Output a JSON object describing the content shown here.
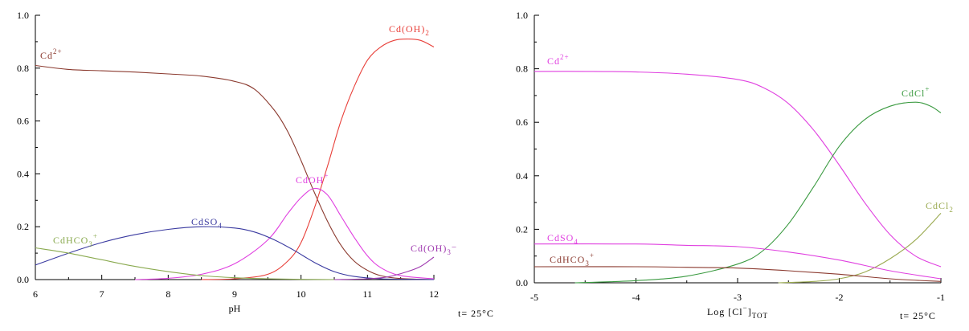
{
  "chart_data": [
    {
      "type": "line",
      "xlabel": "pH",
      "temperature_label": "t= 25°C",
      "xlim": [
        6,
        12
      ],
      "ylim": [
        0,
        1
      ],
      "x_ticks": [
        "6",
        "7",
        "8",
        "9",
        "10",
        "11",
        "12"
      ],
      "y_ticks": [
        "0.0",
        "0.2",
        "0.4",
        "0.6",
        "0.8",
        "1.0"
      ],
      "grid": false,
      "series": [
        {
          "name": "Cd2+",
          "label_main": "Cd",
          "label_sup": "2+",
          "label_sub": "",
          "label_post": "",
          "color": "#8b3a2f",
          "points": [
            [
              6,
              0.81
            ],
            [
              6.5,
              0.795
            ],
            [
              7,
              0.79
            ],
            [
              7.5,
              0.785
            ],
            [
              8,
              0.778
            ],
            [
              8.5,
              0.77
            ],
            [
              9,
              0.75
            ],
            [
              9.3,
              0.72
            ],
            [
              9.6,
              0.64
            ],
            [
              9.8,
              0.56
            ],
            [
              10,
              0.45
            ],
            [
              10.2,
              0.33
            ],
            [
              10.4,
              0.22
            ],
            [
              10.6,
              0.13
            ],
            [
              10.8,
              0.07
            ],
            [
              11,
              0.035
            ],
            [
              11.2,
              0.015
            ],
            [
              11.5,
              0.004
            ],
            [
              12,
              0.0
            ]
          ]
        },
        {
          "name": "Cd(OH)2",
          "label_main": "Cd(OH)",
          "label_sup": "",
          "label_sub": "2",
          "label_post": "",
          "color": "#e8403a",
          "points": [
            [
              8.5,
              0.0
            ],
            [
              9,
              0.003
            ],
            [
              9.5,
              0.02
            ],
            [
              9.8,
              0.07
            ],
            [
              10,
              0.14
            ],
            [
              10.2,
              0.27
            ],
            [
              10.4,
              0.43
            ],
            [
              10.6,
              0.6
            ],
            [
              10.8,
              0.73
            ],
            [
              11,
              0.83
            ],
            [
              11.2,
              0.88
            ],
            [
              11.4,
              0.905
            ],
            [
              11.6,
              0.91
            ],
            [
              11.8,
              0.905
            ],
            [
              12,
              0.88
            ]
          ]
        },
        {
          "name": "CdOH+",
          "label_main": "CdOH",
          "label_sup": "+",
          "label_sub": "",
          "label_post": "",
          "color": "#e040e0",
          "points": [
            [
              7.5,
              0.0
            ],
            [
              8,
              0.005
            ],
            [
              8.5,
              0.02
            ],
            [
              9,
              0.06
            ],
            [
              9.5,
              0.15
            ],
            [
              9.8,
              0.25
            ],
            [
              10,
              0.31
            ],
            [
              10.2,
              0.345
            ],
            [
              10.4,
              0.32
            ],
            [
              10.6,
              0.24
            ],
            [
              10.8,
              0.16
            ],
            [
              11,
              0.09
            ],
            [
              11.2,
              0.045
            ],
            [
              11.5,
              0.015
            ],
            [
              12,
              0.003
            ]
          ]
        },
        {
          "name": "CdSO4",
          "label_main": "CdSO",
          "label_sup": "",
          "label_sub": "4",
          "label_post": "",
          "color": "#3a3aa0",
          "points": [
            [
              6,
              0.055
            ],
            [
              6.5,
              0.1
            ],
            [
              7,
              0.14
            ],
            [
              7.5,
              0.17
            ],
            [
              8,
              0.19
            ],
            [
              8.5,
              0.2
            ],
            [
              9,
              0.195
            ],
            [
              9.3,
              0.18
            ],
            [
              9.6,
              0.15
            ],
            [
              9.9,
              0.11
            ],
            [
              10.2,
              0.065
            ],
            [
              10.5,
              0.03
            ],
            [
              10.8,
              0.012
            ],
            [
              11.2,
              0.003
            ],
            [
              12,
              0.0
            ]
          ]
        },
        {
          "name": "CdHCO3+",
          "label_main": "CdHCO",
          "label_sup": "+",
          "label_sub": "3",
          "label_post": "",
          "color": "#8aaa50",
          "points": [
            [
              6,
              0.12
            ],
            [
              6.5,
              0.1
            ],
            [
              7,
              0.075
            ],
            [
              7.5,
              0.05
            ],
            [
              8,
              0.03
            ],
            [
              8.5,
              0.015
            ],
            [
              9,
              0.007
            ],
            [
              9.5,
              0.003
            ],
            [
              10,
              0.001
            ],
            [
              10.5,
              0.0
            ]
          ]
        },
        {
          "name": "Cd(OH)3-",
          "label_main": "Cd(OH)",
          "label_sup": "",
          "label_sub": "3",
          "label_post": "−",
          "color": "#a03ab0",
          "points": [
            [
              10.5,
              0.0
            ],
            [
              11,
              0.003
            ],
            [
              11.3,
              0.01
            ],
            [
              11.6,
              0.03
            ],
            [
              11.8,
              0.05
            ],
            [
              12,
              0.085
            ]
          ]
        }
      ]
    },
    {
      "type": "line",
      "xlabel_main": "Log [Cl",
      "xlabel_sup": "−",
      "xlabel_close": "]",
      "xlabel_sub": "TOT",
      "temperature_label": "t= 25°C",
      "xlim": [
        -5,
        -1
      ],
      "ylim": [
        0,
        1
      ],
      "x_ticks": [
        "-5",
        "-4",
        "-3",
        "-2",
        "-1"
      ],
      "y_ticks": [
        "0.0",
        "0.2",
        "0.4",
        "0.6",
        "0.8",
        "1.0"
      ],
      "grid": false,
      "series": [
        {
          "name": "Cd2+",
          "label_main": "Cd",
          "label_sup": "2+",
          "label_sub": "",
          "label_post": "",
          "color": "#e040e0",
          "points": [
            [
              -5,
              0.79
            ],
            [
              -4.5,
              0.79
            ],
            [
              -4,
              0.788
            ],
            [
              -3.5,
              0.78
            ],
            [
              -3,
              0.76
            ],
            [
              -2.75,
              0.73
            ],
            [
              -2.5,
              0.67
            ],
            [
              -2.25,
              0.57
            ],
            [
              -2,
              0.44
            ],
            [
              -1.75,
              0.3
            ],
            [
              -1.5,
              0.18
            ],
            [
              -1.25,
              0.1
            ],
            [
              -1,
              0.06
            ]
          ]
        },
        {
          "name": "CdCl+",
          "label_main": "CdCl",
          "label_sup": "+",
          "label_sub": "",
          "label_post": "",
          "color": "#3a9a40",
          "points": [
            [
              -4.6,
              0.0
            ],
            [
              -4,
              0.008
            ],
            [
              -3.5,
              0.025
            ],
            [
              -3,
              0.07
            ],
            [
              -2.75,
              0.12
            ],
            [
              -2.5,
              0.22
            ],
            [
              -2.25,
              0.36
            ],
            [
              -2,
              0.51
            ],
            [
              -1.75,
              0.61
            ],
            [
              -1.5,
              0.66
            ],
            [
              -1.25,
              0.675
            ],
            [
              -1.1,
              0.66
            ],
            [
              -1,
              0.635
            ]
          ]
        },
        {
          "name": "CdCl2",
          "label_main": "CdCl",
          "label_sup": "",
          "label_sub": "2",
          "label_post": "",
          "color": "#9aaa50",
          "points": [
            [
              -2.6,
              0.0
            ],
            [
              -2.25,
              0.005
            ],
            [
              -2,
              0.015
            ],
            [
              -1.75,
              0.04
            ],
            [
              -1.5,
              0.09
            ],
            [
              -1.25,
              0.16
            ],
            [
              -1,
              0.26
            ]
          ]
        },
        {
          "name": "CdSO4",
          "label_main": "CdSO",
          "label_sup": "",
          "label_sub": "4",
          "label_post": "",
          "color": "#e040e0",
          "points": [
            [
              -5,
              0.145
            ],
            [
              -4,
              0.145
            ],
            [
              -3.5,
              0.14
            ],
            [
              -3,
              0.135
            ],
            [
              -2.5,
              0.115
            ],
            [
              -2,
              0.085
            ],
            [
              -1.5,
              0.045
            ],
            [
              -1,
              0.015
            ]
          ]
        },
        {
          "name": "CdHCO3+",
          "label_main": "CdHCO",
          "label_sup": "+",
          "label_sub": "3",
          "label_post": "",
          "color": "#8b3a2f",
          "points": [
            [
              -5,
              0.06
            ],
            [
              -4,
              0.06
            ],
            [
              -3.5,
              0.058
            ],
            [
              -3,
              0.055
            ],
            [
              -2.5,
              0.045
            ],
            [
              -2,
              0.032
            ],
            [
              -1.5,
              0.015
            ],
            [
              -1,
              0.005
            ]
          ]
        }
      ]
    }
  ]
}
